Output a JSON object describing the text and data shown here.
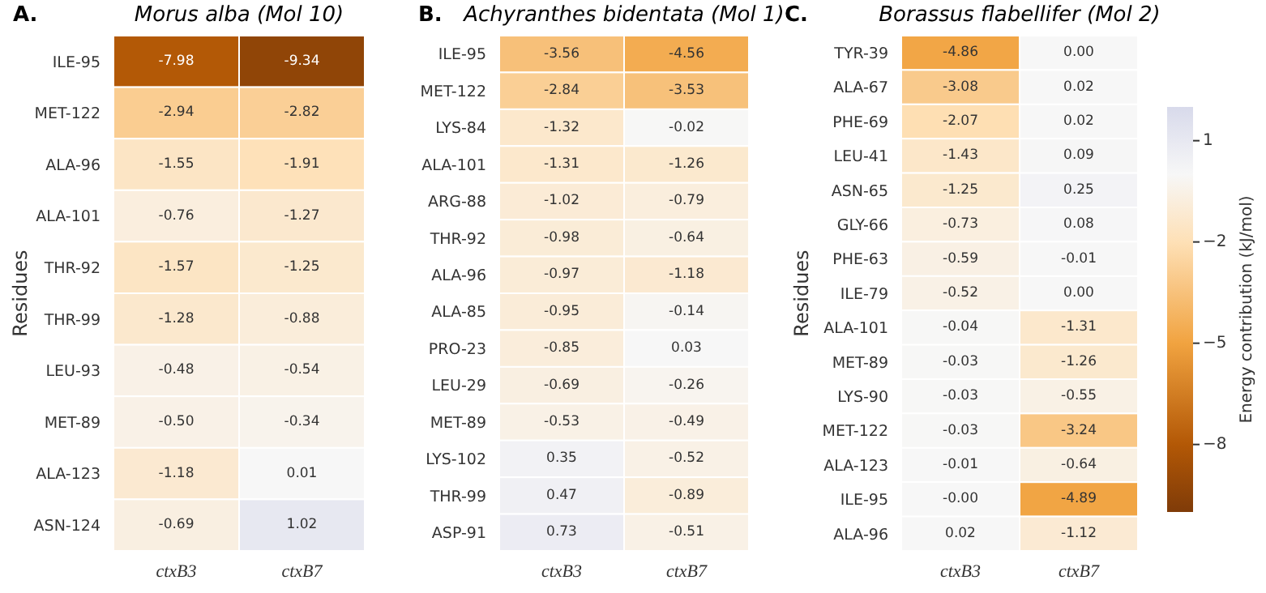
{
  "chart_data": [
    {
      "type": "heatmap",
      "title": "Morus alba (Mol 10)",
      "ylabel": "Residues",
      "annotations": [
        "A."
      ],
      "categories": [
        "ctxB3",
        "ctxB7"
      ],
      "y_categories": [
        "ILE-95",
        "MET-122",
        "ALA-96",
        "ALA-101",
        "THR-92",
        "THR-99",
        "LEU-93",
        "MET-89",
        "ALA-123",
        "ASN-124"
      ],
      "cells": [
        [
          -7.98,
          -9.34
        ],
        [
          -2.94,
          -2.82
        ],
        [
          -1.55,
          -1.91
        ],
        [
          -0.76,
          -1.27
        ],
        [
          -1.57,
          -1.25
        ],
        [
          -1.28,
          -0.88
        ],
        [
          -0.48,
          -0.54
        ],
        [
          -0.5,
          -0.34
        ],
        [
          -1.18,
          0.01
        ],
        [
          -0.69,
          1.02
        ]
      ],
      "cell_labels": [
        [
          "-7.98",
          "-9.34"
        ],
        [
          "-2.94",
          "-2.82"
        ],
        [
          "-1.55",
          "-1.91"
        ],
        [
          "-0.76",
          "-1.27"
        ],
        [
          "-1.57",
          "-1.25"
        ],
        [
          "-1.28",
          "-0.88"
        ],
        [
          "-0.48",
          "-0.54"
        ],
        [
          "-0.50",
          "-0.34"
        ],
        [
          "-1.18",
          "0.01"
        ],
        [
          "-0.69",
          "1.02"
        ]
      ],
      "data_labels": true
    },
    {
      "type": "heatmap",
      "title": "Achyranthes bidentata (Mol 1)",
      "annotations": [
        "B."
      ],
      "categories": [
        "ctxB3",
        "ctxB7"
      ],
      "y_categories": [
        "ILE-95",
        "MET-122",
        "LYS-84",
        "ALA-101",
        "ARG-88",
        "THR-92",
        "ALA-96",
        "ALA-85",
        "PRO-23",
        "LEU-29",
        "MET-89",
        "LYS-102",
        "THR-99",
        "ASP-91"
      ],
      "cells": [
        [
          -3.56,
          -4.56
        ],
        [
          -2.84,
          -3.53
        ],
        [
          -1.32,
          -0.02
        ],
        [
          -1.31,
          -1.26
        ],
        [
          -1.02,
          -0.79
        ],
        [
          -0.98,
          -0.64
        ],
        [
          -0.97,
          -1.18
        ],
        [
          -0.95,
          -0.14
        ],
        [
          -0.85,
          0.03
        ],
        [
          -0.69,
          -0.26
        ],
        [
          -0.53,
          -0.49
        ],
        [
          0.35,
          -0.52
        ],
        [
          0.47,
          -0.89
        ],
        [
          0.73,
          -0.51
        ]
      ],
      "cell_labels": [
        [
          "-3.56",
          "-4.56"
        ],
        [
          "-2.84",
          "-3.53"
        ],
        [
          "-1.32",
          "-0.02"
        ],
        [
          "-1.31",
          "-1.26"
        ],
        [
          "-1.02",
          "-0.79"
        ],
        [
          "-0.98",
          "-0.64"
        ],
        [
          "-0.97",
          "-1.18"
        ],
        [
          "-0.95",
          "-0.14"
        ],
        [
          "-0.85",
          "0.03"
        ],
        [
          "-0.69",
          "-0.26"
        ],
        [
          "-0.53",
          "-0.49"
        ],
        [
          "0.35",
          "-0.52"
        ],
        [
          "0.47",
          "-0.89"
        ],
        [
          "0.73",
          "-0.51"
        ]
      ],
      "data_labels": true
    },
    {
      "type": "heatmap",
      "title": "Borassus flabellifer (Mol 2)",
      "ylabel": "Residues",
      "annotations": [
        "C."
      ],
      "categories": [
        "ctxB3",
        "ctxB7"
      ],
      "y_categories": [
        "TYR-39",
        "ALA-67",
        "PHE-69",
        "LEU-41",
        "ASN-65",
        "GLY-66",
        "PHE-63",
        "ILE-79",
        "ALA-101",
        "MET-89",
        "LYS-90",
        "MET-122",
        "ALA-123",
        "ILE-95",
        "ALA-96"
      ],
      "cells": [
        [
          -4.86,
          0
        ],
        [
          -3.08,
          0.02
        ],
        [
          -2.07,
          0.02
        ],
        [
          -1.43,
          0.09
        ],
        [
          -1.25,
          0.25
        ],
        [
          -0.73,
          0.08
        ],
        [
          -0.59,
          -0.01
        ],
        [
          -0.52,
          0
        ],
        [
          -0.04,
          -1.31
        ],
        [
          -0.03,
          -1.26
        ],
        [
          -0.03,
          -0.55
        ],
        [
          -0.03,
          -3.24
        ],
        [
          -0.01,
          -0.64
        ],
        [
          0,
          -4.89
        ],
        [
          0.02,
          -1.12
        ]
      ],
      "cell_labels": [
        [
          "-4.86",
          "0.00"
        ],
        [
          "-3.08",
          "0.02"
        ],
        [
          "-2.07",
          "0.02"
        ],
        [
          "-1.43",
          "0.09"
        ],
        [
          "-1.25",
          "0.25"
        ],
        [
          "-0.73",
          "0.08"
        ],
        [
          "-0.59",
          "-0.01"
        ],
        [
          "-0.52",
          "0.00"
        ],
        [
          "-0.04",
          "-1.31"
        ],
        [
          "-0.03",
          "-1.26"
        ],
        [
          "-0.03",
          "-0.55"
        ],
        [
          "-0.03",
          "-3.24"
        ],
        [
          "-0.01",
          "-0.64"
        ],
        [
          "-0.00",
          "-4.89"
        ],
        [
          "0.02",
          "-1.12"
        ]
      ],
      "data_labels": true,
      "clim": [
        -10,
        2
      ],
      "cticks": [
        1,
        -2,
        -5,
        -8
      ],
      "clabel": "Energy contribution (kJ/mol)"
    }
  ]
}
